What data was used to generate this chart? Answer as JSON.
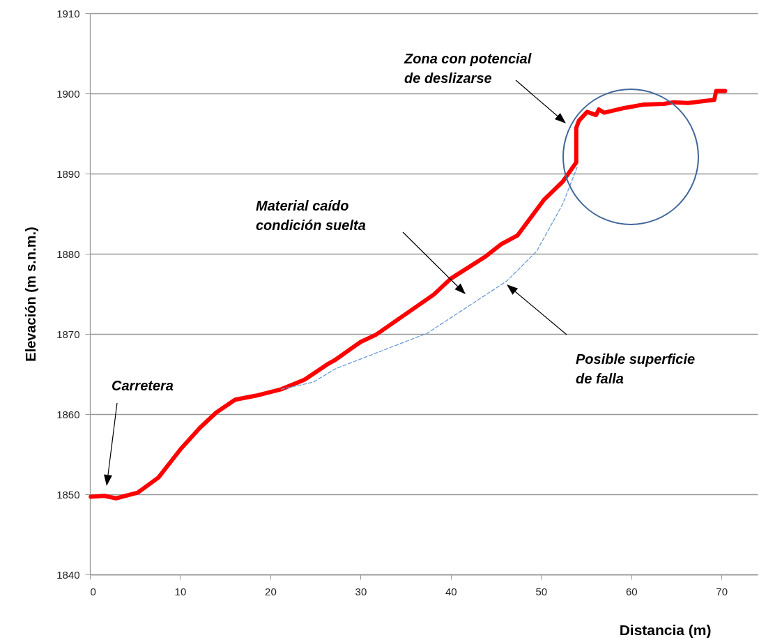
{
  "chart_data": {
    "type": "line",
    "xlabel": "Distancia (m)",
    "ylabel": "Elevación (m s.n.m.)",
    "xlim": [
      0,
      74
    ],
    "xticks": [
      0,
      10,
      20,
      30,
      40,
      50,
      60,
      70
    ],
    "ylim": [
      1840,
      1910
    ],
    "yticks": [
      1840,
      1850,
      1860,
      1870,
      1880,
      1890,
      1900,
      1910
    ],
    "grid": "y",
    "marker": "none",
    "series": [
      {
        "color": "#ff0000",
        "line_style": "solid",
        "x": [
          0.1,
          1.6,
          2.9,
          5.3,
          7.6,
          10.1,
          12.2,
          14.0,
          16.1,
          18.4,
          21.2,
          23.8,
          26.3,
          27.1,
          30.0,
          31.7,
          38.1,
          40.0,
          43.9,
          45.6,
          47.4,
          50.3,
          52.4,
          53.9,
          53.9,
          54.2,
          55.1,
          56.1,
          56.4,
          57.0,
          59.3,
          61.3,
          63.6,
          64.7,
          66.3,
          69.2,
          69.4,
          70.4
        ],
        "values": [
          1849.7,
          1849.8,
          1849.5,
          1850.2,
          1852.1,
          1855.7,
          1858.3,
          1860.2,
          1861.8,
          1862.3,
          1863.1,
          1864.3,
          1866.2,
          1866.7,
          1869.0,
          1869.9,
          1874.9,
          1876.9,
          1879.7,
          1881.2,
          1882.3,
          1886.7,
          1889.0,
          1891.4,
          1895.7,
          1896.6,
          1897.7,
          1897.3,
          1898.0,
          1897.6,
          1898.2,
          1898.6,
          1898.7,
          1898.9,
          1898.8,
          1899.2,
          1900.3,
          1900.3
        ]
      },
      {
        "color": "#6b9bd6",
        "line_style": "dashed",
        "x": [
          21.2,
          24.8,
          27.1,
          37.4,
          46.2,
          49.5,
          52.4,
          54.0
        ],
        "values": [
          1863.1,
          1864.0,
          1865.6,
          1870.1,
          1876.6,
          1880.3,
          1886.2,
          1890.8
        ]
      }
    ],
    "annotations": [
      "Carretera",
      "Material caído\ncondición suelta",
      "Posible superficie\nde falla",
      "Zona con potencial\nde deslizarse"
    ]
  }
}
